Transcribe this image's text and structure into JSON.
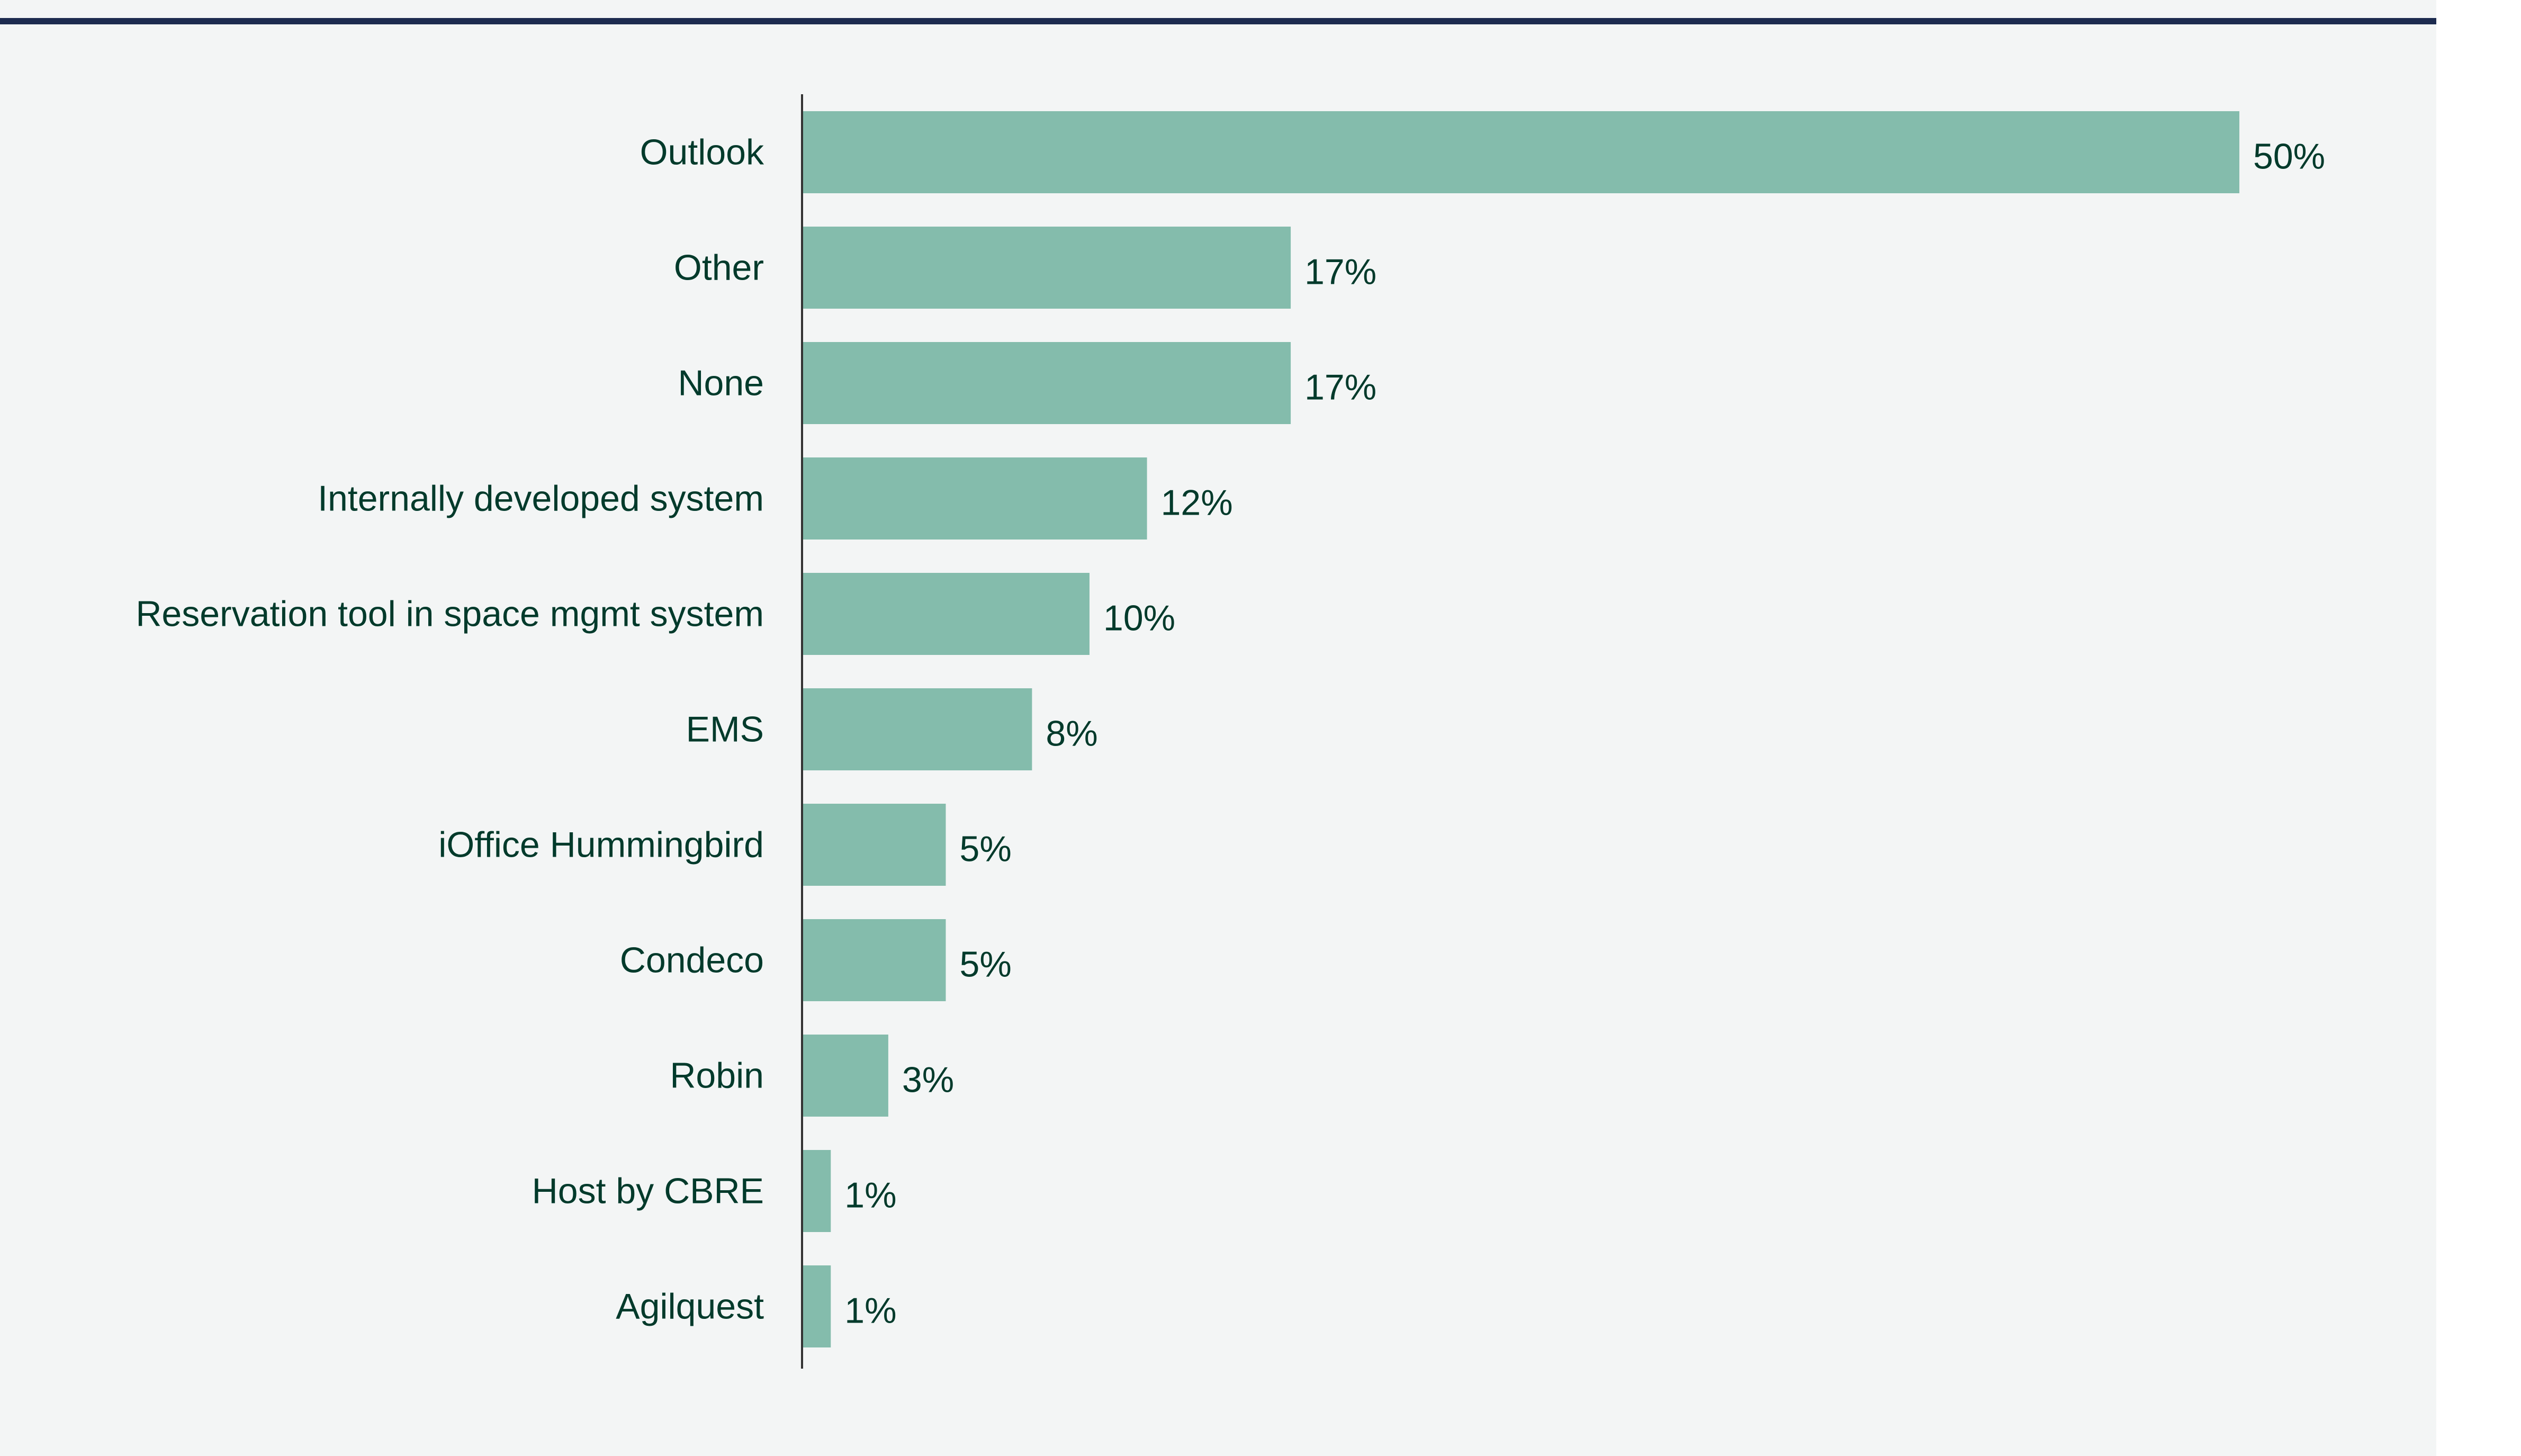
{
  "chart_data": {
    "type": "bar",
    "orientation": "horizontal",
    "categories": [
      "Outlook",
      "Other",
      "None",
      "Internally developed system",
      "Reservation tool in space mgmt system",
      "EMS",
      "iOffice Hummingbird",
      "Condeco",
      "Robin",
      "Host by CBRE",
      "Agilquest"
    ],
    "values": [
      50,
      17,
      17,
      12,
      10,
      8,
      5,
      5,
      3,
      1,
      1
    ],
    "value_labels": [
      "50%",
      "17%",
      "17%",
      "12%",
      "10%",
      "8%",
      "5%",
      "5%",
      "3%",
      "1%",
      "1%"
    ],
    "unit": "%",
    "xlim": [
      0,
      50
    ],
    "grid": false,
    "legend": "none",
    "colors": {
      "bar": "#84bcac",
      "text": "#013a2b",
      "axis": "#333333",
      "background": "#f3f5f5",
      "top_rule": "#1c2b4f"
    }
  }
}
